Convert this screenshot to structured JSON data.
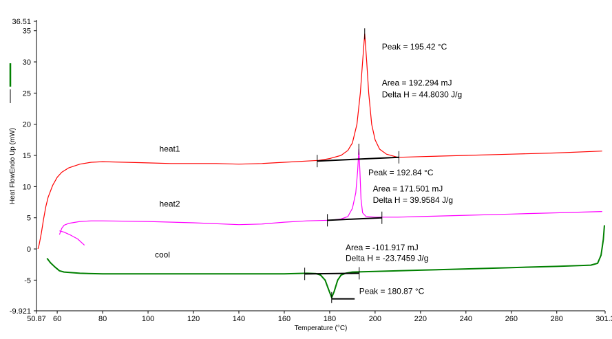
{
  "chart_data": {
    "type": "line",
    "xlabel": "Temperature (°C)",
    "ylabel": "Heat FlowEndo Up (mW)",
    "xlim": [
      50.87,
      301.3
    ],
    "ylim": [
      -9.921,
      36.51
    ],
    "x_ticks": [
      50.87,
      60,
      80,
      100,
      120,
      140,
      160,
      180,
      200,
      220,
      240,
      260,
      280,
      301.3
    ],
    "x_tick_labels": [
      "50.87",
      "60",
      "80",
      "100",
      "120",
      "140",
      "160",
      "180",
      "200",
      "220",
      "240",
      "260",
      "280",
      "301.3"
    ],
    "y_ticks": [
      -9.921,
      -5,
      0,
      5,
      10,
      15,
      20,
      25,
      30,
      35,
      36.51
    ],
    "y_tick_labels": [
      "-9.921",
      "-5",
      "0",
      "5",
      "10",
      "15",
      "20",
      "25",
      "30",
      "35",
      "36.51"
    ],
    "grid": false,
    "series": [
      {
        "name": "heat1",
        "color": "#ff0000",
        "points": [
          [
            51.5,
            0
          ],
          [
            52,
            0.6
          ],
          [
            53,
            2.5
          ],
          [
            54,
            4.8
          ],
          [
            55,
            6.8
          ],
          [
            56,
            8.3
          ],
          [
            58,
            10.2
          ],
          [
            60,
            11.5
          ],
          [
            62,
            12.3
          ],
          [
            65,
            13
          ],
          [
            70,
            13.6
          ],
          [
            75,
            13.9
          ],
          [
            80,
            14
          ],
          [
            90,
            13.9
          ],
          [
            100,
            13.8
          ],
          [
            110,
            13.7
          ],
          [
            120,
            13.7
          ],
          [
            130,
            13.7
          ],
          [
            140,
            13.6
          ],
          [
            150,
            13.7
          ],
          [
            160,
            13.9
          ],
          [
            170,
            14.1
          ],
          [
            175,
            14.2
          ],
          [
            180,
            14.5
          ],
          [
            185,
            15
          ],
          [
            188,
            15.8
          ],
          [
            190,
            17
          ],
          [
            192,
            20
          ],
          [
            193.5,
            25
          ],
          [
            194.5,
            30
          ],
          [
            195.42,
            34.5
          ],
          [
            196.3,
            30
          ],
          [
            197.2,
            25
          ],
          [
            198.5,
            20
          ],
          [
            200,
            17.5
          ],
          [
            202,
            16
          ],
          [
            205,
            15.2
          ],
          [
            210,
            14.7
          ],
          [
            220,
            14.8
          ],
          [
            240,
            15
          ],
          [
            260,
            15.2
          ],
          [
            280,
            15.4
          ],
          [
            300,
            15.7
          ]
        ]
      },
      {
        "name": "heat2",
        "color": "#ff00ff",
        "points": [
          [
            61,
            2.3
          ],
          [
            62,
            3.3
          ],
          [
            63,
            3.8
          ],
          [
            65,
            4.1
          ],
          [
            70,
            4.4
          ],
          [
            75,
            4.5
          ],
          [
            80,
            4.5
          ],
          [
            100,
            4.4
          ],
          [
            120,
            4.2
          ],
          [
            140,
            3.9
          ],
          [
            150,
            4
          ],
          [
            160,
            4.3
          ],
          [
            170,
            4.5
          ],
          [
            180,
            4.6
          ],
          [
            185,
            4.8
          ],
          [
            188,
            5.2
          ],
          [
            190,
            6.5
          ],
          [
            191.5,
            9
          ],
          [
            192.3,
            12.5
          ],
          [
            192.84,
            16
          ],
          [
            193.3,
            12.5
          ],
          [
            193.8,
            8
          ],
          [
            194.5,
            5.8
          ],
          [
            196,
            5.2
          ],
          [
            200,
            5.1
          ],
          [
            210,
            5.1
          ],
          [
            220,
            5.2
          ],
          [
            240,
            5.4
          ],
          [
            260,
            5.6
          ],
          [
            280,
            5.8
          ],
          [
            300,
            6
          ]
        ]
      },
      {
        "name": "heat2-start",
        "color": "#ff00ff",
        "points": [
          [
            61,
            2.9
          ],
          [
            63,
            2.7
          ],
          [
            66,
            2.2
          ],
          [
            69,
            1.6
          ],
          [
            72,
            0.6
          ]
        ]
      },
      {
        "name": "cool",
        "color": "#008000",
        "points": [
          [
            55.5,
            -1.5
          ],
          [
            57,
            -2.2
          ],
          [
            59,
            -2.9
          ],
          [
            61,
            -3.5
          ],
          [
            63,
            -3.7
          ],
          [
            70,
            -3.9
          ],
          [
            80,
            -4
          ],
          [
            100,
            -4
          ],
          [
            120,
            -4
          ],
          [
            140,
            -4
          ],
          [
            160,
            -4
          ],
          [
            170,
            -3.9
          ],
          [
            174,
            -3.95
          ],
          [
            176,
            -4.2
          ],
          [
            178,
            -5
          ],
          [
            179.5,
            -6.5
          ],
          [
            180.87,
            -7.8
          ],
          [
            182,
            -6.8
          ],
          [
            183.5,
            -5
          ],
          [
            185,
            -4.2
          ],
          [
            187,
            -3.9
          ],
          [
            190,
            -3.7
          ],
          [
            200,
            -3.6
          ],
          [
            220,
            -3.4
          ],
          [
            240,
            -3.2
          ],
          [
            260,
            -3
          ],
          [
            280,
            -2.8
          ],
          [
            295,
            -2.6
          ],
          [
            298,
            -2.3
          ],
          [
            299.5,
            -1
          ],
          [
            300.5,
            1.5
          ],
          [
            301,
            3.8
          ]
        ]
      }
    ],
    "curve_labels": [
      {
        "text": "heat1",
        "x": 105,
        "y": 15.6
      },
      {
        "text": "heat2",
        "x": 105,
        "y": 6.8
      },
      {
        "text": "cool",
        "x": 103,
        "y": -1.4
      }
    ],
    "annotations": [
      {
        "text": "Peak = 195.42 °C",
        "x": 203,
        "y": 32
      },
      {
        "text": "Area = 192.294 mJ",
        "x": 203,
        "y": 26.2
      },
      {
        "text": "Delta H = 44.8030 J/g",
        "x": 203,
        "y": 24.3
      },
      {
        "text": "Peak = 192.84 °C",
        "x": 197,
        "y": 11.8
      },
      {
        "text": "Area = 171.501 mJ",
        "x": 199,
        "y": 9.2
      },
      {
        "text": "Delta H = 39.9584 J/g",
        "x": 199,
        "y": 7.4
      },
      {
        "text": "Area = -101.917 mJ",
        "x": 187,
        "y": -0.2
      },
      {
        "text": "Delta H = -23.7459 J/g",
        "x": 187,
        "y": -1.9
      },
      {
        "text": "Peak = 180.87 °C",
        "x": 193,
        "y": -7.2
      }
    ],
    "baselines": [
      {
        "x1": 174.5,
        "y1": 14.1,
        "x2": 210.5,
        "y2": 14.7,
        "color": "#000000"
      },
      {
        "x1": 179,
        "y1": 4.6,
        "x2": 203,
        "y2": 5.0,
        "color": "#000000"
      },
      {
        "x1": 169,
        "y1": -4.0,
        "x2": 193,
        "y2": -3.9,
        "color": "#000000"
      }
    ],
    "peak_bars": [
      {
        "x1": 180.87,
        "x2": 191,
        "y": -8.0,
        "color": "#000000"
      }
    ],
    "peak_markers": [
      {
        "x": 195.42,
        "y": 34.5,
        "color": "#000000"
      },
      {
        "x": 192.84,
        "y": 16,
        "color": "#000000"
      },
      {
        "x": 180.87,
        "y": -7.8,
        "color": "#000000"
      }
    ],
    "y_axis_legend": [
      {
        "color": "#008000"
      },
      {
        "color": "#000000"
      }
    ]
  }
}
